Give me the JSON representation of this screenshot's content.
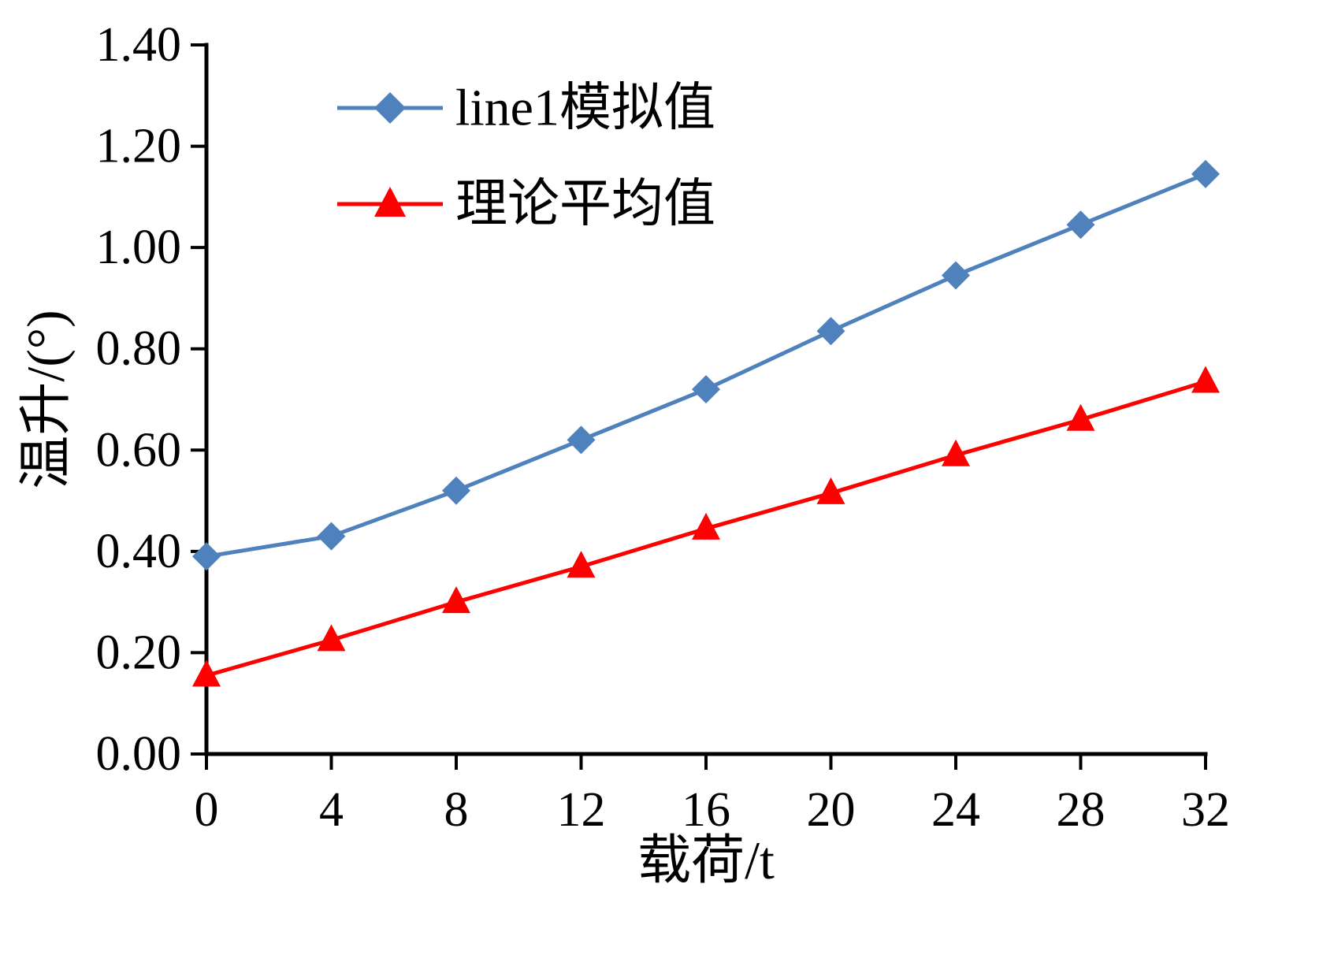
{
  "figure": {
    "background": "#ffffff"
  },
  "chart_data": {
    "type": "line",
    "x": [
      0,
      4,
      8,
      12,
      16,
      20,
      24,
      28,
      32
    ],
    "series": [
      {
        "name": "line1模拟值",
        "color": "#4f81bd",
        "marker": "diamond",
        "values": [
          0.39,
          0.43,
          0.52,
          0.62,
          0.72,
          0.835,
          0.945,
          1.045,
          1.145
        ]
      },
      {
        "name": "理论平均值",
        "color": "#fe0000",
        "marker": "triangle",
        "values": [
          0.155,
          0.225,
          0.3,
          0.37,
          0.445,
          0.515,
          0.59,
          0.66,
          0.735
        ]
      }
    ],
    "title": "",
    "xlabel": "载荷/t",
    "ylabel": "温升/(°)",
    "xlim": [
      0,
      32
    ],
    "ylim": [
      0.0,
      1.4
    ],
    "x_ticks": [
      0,
      4,
      8,
      12,
      16,
      20,
      24,
      28,
      32
    ],
    "y_ticks": [
      0.0,
      0.2,
      0.4,
      0.6,
      0.8,
      1.0,
      1.2,
      1.4
    ],
    "y_tick_decimals": 2,
    "grid": false,
    "legend_position": "top-left-inside",
    "axis_color": "#000000"
  }
}
